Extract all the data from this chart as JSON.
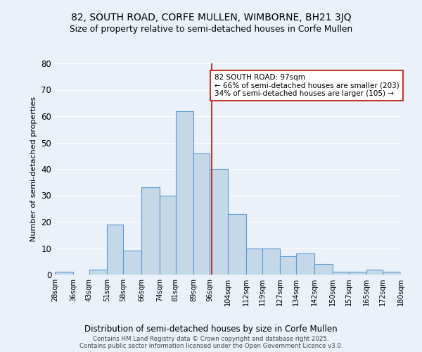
{
  "title1": "82, SOUTH ROAD, CORFE MULLEN, WIMBORNE, BH21 3JQ",
  "title2": "Size of property relative to semi-detached houses in Corfe Mullen",
  "xlabel": "Distribution of semi-detached houses by size in Corfe Mullen",
  "ylabel": "Number of semi-detached properties",
  "bins": [
    28,
    36,
    43,
    51,
    58,
    66,
    74,
    81,
    89,
    96,
    104,
    112,
    119,
    127,
    134,
    142,
    150,
    157,
    165,
    172,
    180
  ],
  "counts": [
    1,
    0,
    2,
    19,
    9,
    33,
    30,
    62,
    46,
    40,
    23,
    10,
    10,
    7,
    8,
    4,
    1,
    1,
    2,
    1
  ],
  "tick_labels": [
    "28sqm",
    "36sqm",
    "43sqm",
    "51sqm",
    "58sqm",
    "66sqm",
    "74sqm",
    "81sqm",
    "89sqm",
    "96sqm",
    "104sqm",
    "112sqm",
    "119sqm",
    "127sqm",
    "134sqm",
    "142sqm",
    "150sqm",
    "157sqm",
    "165sqm",
    "172sqm",
    "180sqm"
  ],
  "property_size": 97,
  "bar_color": "#c5d8e8",
  "bar_edge_color": "#5b9bd5",
  "vline_color": "#c0392b",
  "background_color": "#eaf1f8",
  "grid_color": "#ffffff",
  "annotation_text": "82 SOUTH ROAD: 97sqm\n← 66% of semi-detached houses are smaller (203)\n34% of semi-detached houses are larger (105) →",
  "footer": "Contains HM Land Registry data © Crown copyright and database right 2025.\nContains public sector information licensed under the Open Government Licence v3.0.",
  "ylim": [
    0,
    80
  ],
  "yticks": [
    0,
    10,
    20,
    30,
    40,
    50,
    60,
    70,
    80
  ]
}
